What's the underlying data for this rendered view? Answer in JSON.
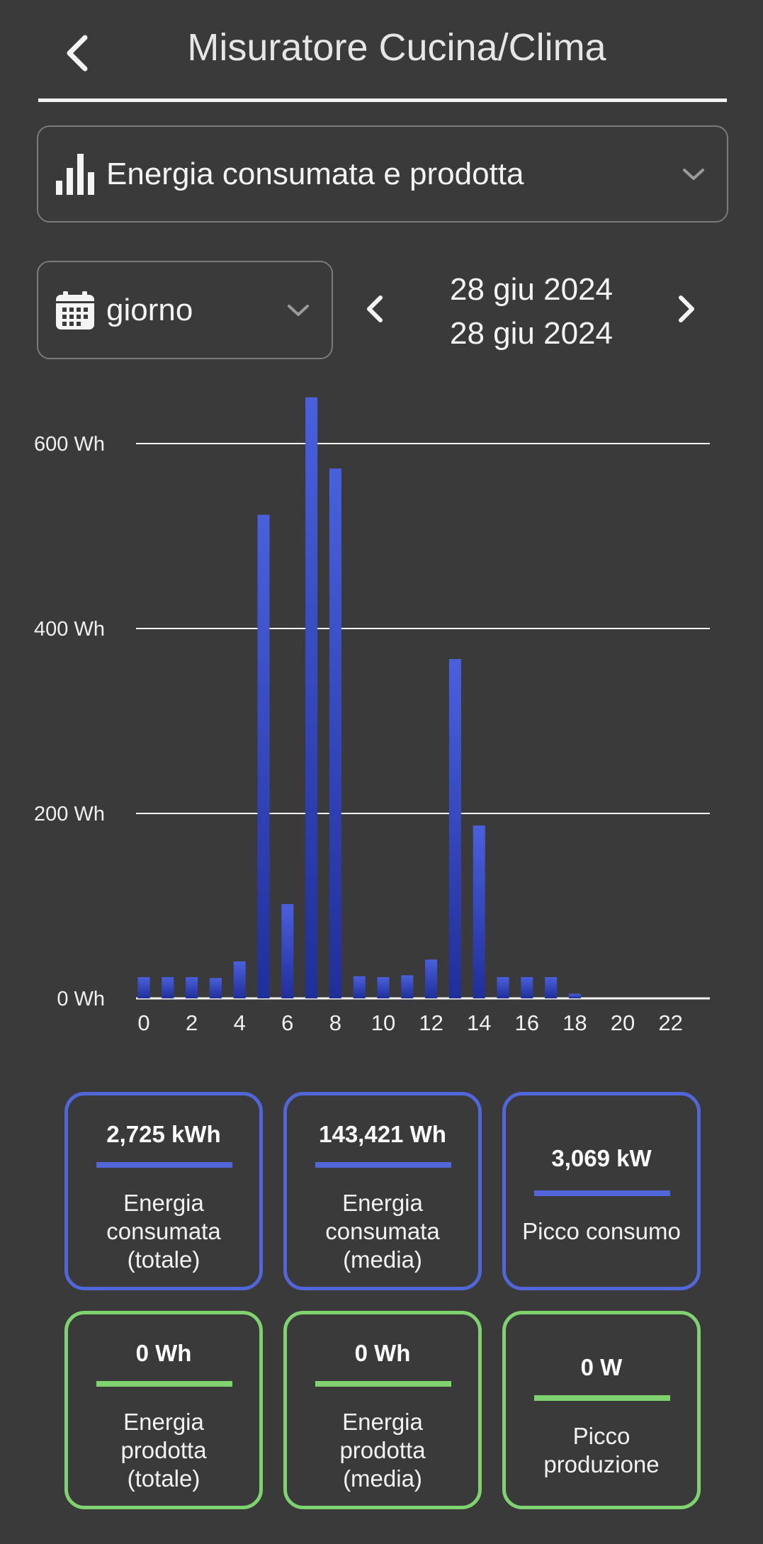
{
  "header": {
    "title": "Misuratore Cucina/Clima"
  },
  "metric_select": {
    "label": "Energia consumata e prodotta",
    "icon": "bar-chart-icon"
  },
  "period_select": {
    "label": "giorno",
    "icon": "calendar-icon"
  },
  "date_range": {
    "start": "28 giu 2024",
    "end": "28 giu 2024"
  },
  "colors": {
    "consumed": "#5166d8",
    "produced": "#7fd36f",
    "bar_top": "#4a60dc",
    "bar_bottom": "#1f2f9a",
    "background": "#3a3a3a"
  },
  "chart_data": {
    "type": "bar",
    "x": [
      0,
      1,
      2,
      3,
      4,
      5,
      6,
      7,
      8,
      9,
      10,
      11,
      12,
      13,
      14,
      15,
      16,
      17,
      18,
      19,
      20,
      21,
      22,
      23
    ],
    "x_tick_labels": [
      "0",
      "2",
      "4",
      "6",
      "8",
      "10",
      "12",
      "14",
      "16",
      "18",
      "20",
      "22"
    ],
    "values": [
      23,
      23,
      23,
      22,
      40,
      523,
      102,
      650,
      573,
      24,
      23,
      25,
      42,
      367,
      187,
      23,
      23,
      23,
      5,
      0,
      0,
      0,
      0,
      0
    ],
    "y_ticks": [
      "0 Wh",
      "200 Wh",
      "400 Wh",
      "600 Wh"
    ],
    "ylim": [
      0,
      650
    ],
    "grid": true,
    "unit": "Wh"
  },
  "stats": {
    "consumed": [
      {
        "value": "2,725 kWh",
        "label_lines": [
          "Energia",
          "consumata",
          "(totale)"
        ]
      },
      {
        "value": "143,421 Wh",
        "label_lines": [
          "Energia",
          "consumata",
          "(media)"
        ]
      },
      {
        "value": "3,069 kW",
        "label_lines": [
          "Picco consumo"
        ]
      }
    ],
    "produced": [
      {
        "value": "0 Wh",
        "label_lines": [
          "Energia",
          "prodotta",
          "(totale)"
        ]
      },
      {
        "value": "0 Wh",
        "label_lines": [
          "Energia",
          "prodotta",
          "(media)"
        ]
      },
      {
        "value": "0 W",
        "label_lines": [
          "Picco",
          "produzione"
        ]
      }
    ]
  }
}
